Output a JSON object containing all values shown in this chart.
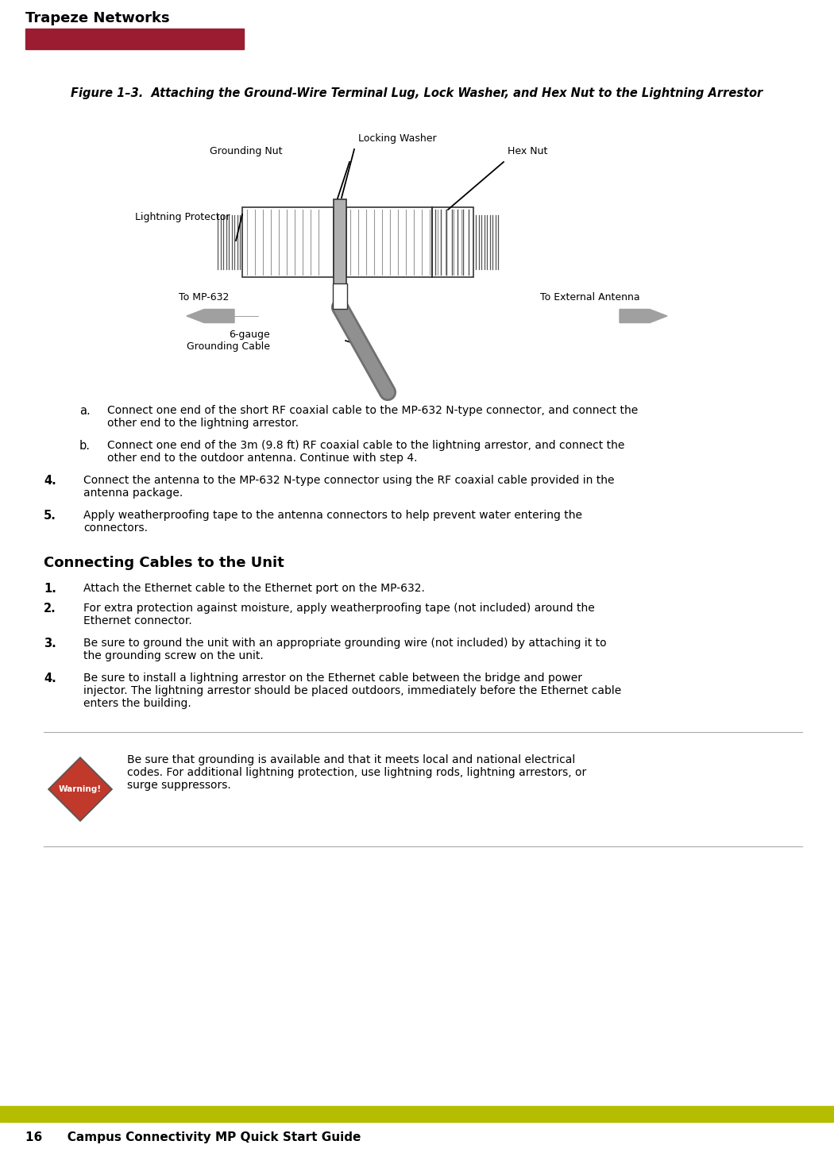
{
  "page_bg": "#ffffff",
  "header_text": "Trapeze Networks",
  "header_bar_color": "#9b1c31",
  "footer_bar_color": "#b5bd00",
  "footer_text": "16      Campus Connectivity MP Quick Start Guide",
  "figure_title": "Figure 1–3.  Attaching the Ground-Wire Terminal Lug, Lock Washer, and Hex Nut to the Lightning Arrestor",
  "warning_text": "Be sure that grounding is available and that it meets local and national electrical\ncodes. For additional lightning protection, use lightning rods, lightning arrestors, or\nsurge suppressors.",
  "warning_label": "Warning!",
  "warning_diamond_color": "#c0392b",
  "header_bar_color2": "#9b1c31",
  "colors": {
    "dark": "#000000",
    "gray": "#808080",
    "light_gray": "#d0d0d0",
    "threading_gray": "#888888",
    "border": "#333333"
  }
}
